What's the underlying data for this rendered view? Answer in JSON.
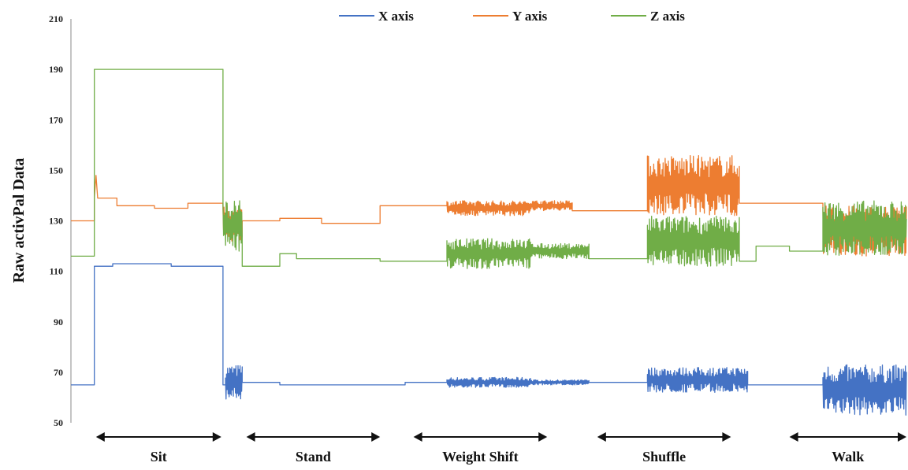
{
  "chart_data": {
    "type": "line",
    "title": "",
    "ylabel": "Raw activPal Data",
    "xlabel": "",
    "ylim": [
      50,
      210
    ],
    "yticks": [
      50,
      70,
      90,
      110,
      130,
      150,
      170,
      190,
      210
    ],
    "grid": false,
    "legend_position": "top-center",
    "x_domain": [
      0,
      100
    ],
    "series": [
      {
        "name": "X axis",
        "color": "#4472C4",
        "segments": [
          {
            "x": [
              0,
              2.8
            ],
            "flat": 65
          },
          {
            "x": [
              2.8,
              3.1
            ],
            "flat": 112
          },
          {
            "x": [
              3.1,
              5
            ],
            "flat": 112
          },
          {
            "x": [
              5,
              12
            ],
            "flat": 113
          },
          {
            "x": [
              12,
              18.2
            ],
            "flat": 112
          },
          {
            "x": [
              18.2,
              18.5
            ],
            "flat": 65
          },
          {
            "x": [
              18.5,
              20.5
            ],
            "noise": [
              66,
              7
            ]
          },
          {
            "x": [
              20.5,
              25
            ],
            "flat": 66
          },
          {
            "x": [
              25,
              40
            ],
            "flat": 65
          },
          {
            "x": [
              40,
              45
            ],
            "flat": 66
          },
          {
            "x": [
              45,
              55
            ],
            "noise": [
              66,
              2
            ]
          },
          {
            "x": [
              55,
              62
            ],
            "noise": [
              66,
              1
            ]
          },
          {
            "x": [
              62,
              69
            ],
            "flat": 66
          },
          {
            "x": [
              69,
              81
            ],
            "noise": [
              67,
              5
            ]
          },
          {
            "x": [
              81,
              86
            ],
            "flat": 65
          },
          {
            "x": [
              86,
              90
            ],
            "flat": 65
          },
          {
            "x": [
              90,
              100
            ],
            "noise": [
              63,
              10
            ]
          }
        ]
      },
      {
        "name": "Y axis",
        "color": "#ED7D31",
        "segments": [
          {
            "x": [
              0,
              2.8
            ],
            "flat": 130
          },
          {
            "x": [
              2.8,
              3.2
            ],
            "spike": 148
          },
          {
            "x": [
              3.2,
              5.5
            ],
            "flat": 139
          },
          {
            "x": [
              5.5,
              10
            ],
            "flat": 136
          },
          {
            "x": [
              10,
              14
            ],
            "flat": 135
          },
          {
            "x": [
              14,
              18.2
            ],
            "flat": 137
          },
          {
            "x": [
              18.2,
              20.5
            ],
            "noise": [
              129,
              7
            ]
          },
          {
            "x": [
              20.5,
              25
            ],
            "flat": 130
          },
          {
            "x": [
              25,
              30
            ],
            "flat": 131
          },
          {
            "x": [
              30,
              37
            ],
            "flat": 129
          },
          {
            "x": [
              37,
              45
            ],
            "flat": 136
          },
          {
            "x": [
              45,
              55
            ],
            "noise": [
              135,
              3
            ]
          },
          {
            "x": [
              55,
              60
            ],
            "noise": [
              136,
              2
            ]
          },
          {
            "x": [
              60,
              69
            ],
            "flat": 134
          },
          {
            "x": [
              69,
              80
            ],
            "noise": [
              144,
              12
            ]
          },
          {
            "x": [
              80,
              90
            ],
            "flat": 137
          },
          {
            "x": [
              90,
              100
            ],
            "noise": [
              126,
              10
            ]
          }
        ]
      },
      {
        "name": "Z axis",
        "color": "#70AD47",
        "segments": [
          {
            "x": [
              0,
              2.8
            ],
            "flat": 116
          },
          {
            "x": [
              2.8,
              18.2
            ],
            "flat": 190
          },
          {
            "x": [
              18.2,
              20.5
            ],
            "noise": [
              128,
              10
            ]
          },
          {
            "x": [
              20.5,
              25
            ],
            "flat": 112
          },
          {
            "x": [
              25,
              27
            ],
            "flat": 117
          },
          {
            "x": [
              27,
              37
            ],
            "flat": 115
          },
          {
            "x": [
              37,
              45
            ],
            "flat": 114
          },
          {
            "x": [
              45,
              55
            ],
            "noise": [
              117,
              6
            ]
          },
          {
            "x": [
              55,
              62
            ],
            "noise": [
              118,
              3
            ]
          },
          {
            "x": [
              62,
              69
            ],
            "flat": 115
          },
          {
            "x": [
              69,
              80
            ],
            "noise": [
              122,
              10
            ]
          },
          {
            "x": [
              80,
              82
            ],
            "flat": 114
          },
          {
            "x": [
              82,
              86
            ],
            "flat": 120
          },
          {
            "x": [
              86,
              90
            ],
            "flat": 118
          },
          {
            "x": [
              90,
              100
            ],
            "noise": [
              127,
              11
            ]
          }
        ]
      }
    ],
    "phases": [
      {
        "label": "Sit",
        "x": [
          3,
          18
        ]
      },
      {
        "label": "Stand",
        "x": [
          21,
          37
        ]
      },
      {
        "label": "Weight Shift",
        "x": [
          41,
          57
        ]
      },
      {
        "label": "Shuffle",
        "x": [
          63,
          79
        ]
      },
      {
        "label": "Walk",
        "x": [
          86,
          100
        ]
      }
    ]
  }
}
